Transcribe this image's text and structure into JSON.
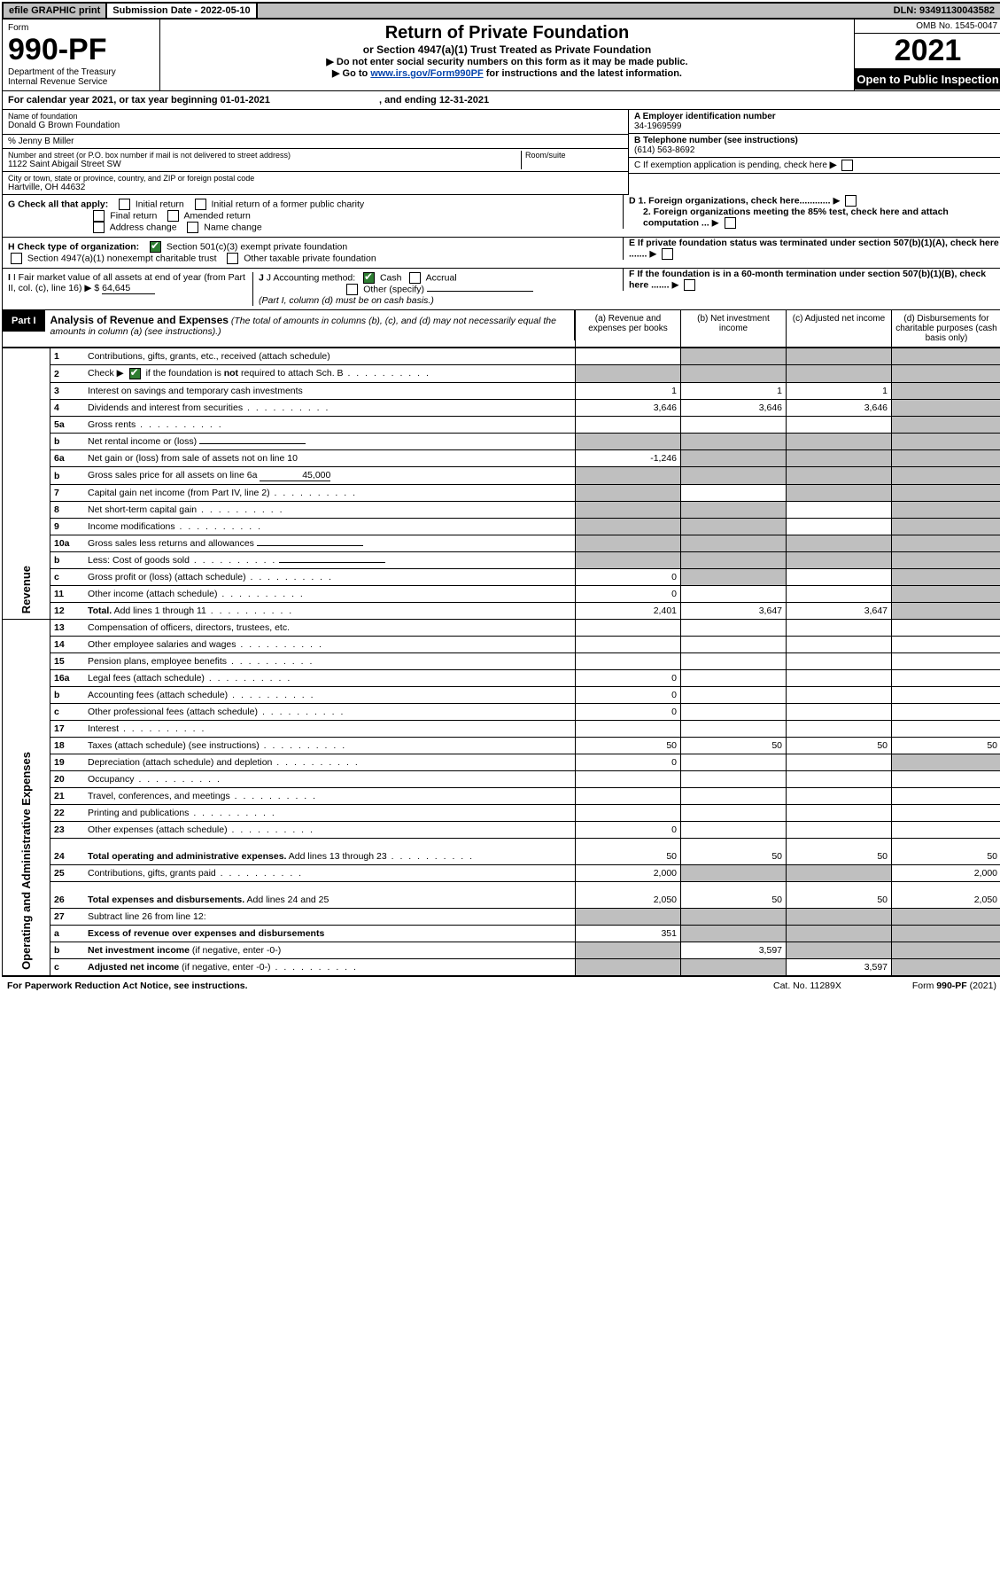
{
  "top": {
    "efile": "efile GRAPHIC print",
    "subdate_label": "Submission Date - ",
    "subdate": "2022-05-10",
    "dln_label": "DLN: ",
    "dln": "93491130043582"
  },
  "hdr": {
    "form_label": "Form",
    "form_no": "990-PF",
    "dept1": "Department of the Treasury",
    "dept2": "Internal Revenue Service",
    "title": "Return of Private Foundation",
    "subtitle": "or Section 4947(a)(1) Trust Treated as Private Foundation",
    "instr1": "▶ Do not enter social security numbers on this form as it may be made public.",
    "instr2a": "▶ Go to ",
    "instr2link": "www.irs.gov/Form990PF",
    "instr2b": " for instructions and the latest information.",
    "omb": "OMB No. 1545-0047",
    "year": "2021",
    "open": "Open to Public Inspection"
  },
  "cal": {
    "line": "For calendar year 2021, or tax year beginning 01-01-2021",
    "ending": ", and ending 12-31-2021"
  },
  "id": {
    "name_lbl": "Name of foundation",
    "name": "Donald G Brown Foundation",
    "co": "% Jenny B Miller",
    "addr_lbl": "Number and street (or P.O. box number if mail is not delivered to street address)",
    "addr": "1122 Saint Abigail Street SW",
    "room_lbl": "Room/suite",
    "city_lbl": "City or town, state or province, country, and ZIP or foreign postal code",
    "city": "Hartville, OH  44632",
    "a_lbl": "A Employer identification number",
    "a_val": "34-1969599",
    "b_lbl": "B Telephone number (see instructions)",
    "b_val": "(614) 563-8692",
    "c_lbl": "C If exemption application is pending, check here",
    "d1": "D 1. Foreign organizations, check here............",
    "d2": "2. Foreign organizations meeting the 85% test, check here and attach computation ...",
    "e": "E  If private foundation status was terminated under section 507(b)(1)(A), check here .......",
    "f": "F  If the foundation is in a 60-month termination under section 507(b)(1)(B), check here .......",
    "g_lbl": "G Check all that apply:",
    "g_opts": [
      "Initial return",
      "Initial return of a former public charity",
      "Final return",
      "Amended return",
      "Address change",
      "Name change"
    ],
    "h_lbl": "H Check type of organization:",
    "h_opts": [
      "Section 501(c)(3) exempt private foundation",
      "Section 4947(a)(1) nonexempt charitable trust",
      "Other taxable private foundation"
    ],
    "i_lbl": "I Fair market value of all assets at end of year (from Part II, col. (c), line 16) ▶ $",
    "i_val": "64,645",
    "j_lbl": "J Accounting method:",
    "j_opts": [
      "Cash",
      "Accrual",
      "Other (specify)"
    ],
    "j_note": "(Part I, column (d) must be on cash basis.)"
  },
  "part1": {
    "tab": "Part I",
    "title": "Analysis of Revenue and Expenses",
    "note": "(The total of amounts in columns (b), (c), and (d) may not necessarily equal the amounts in column (a) (see instructions).)",
    "cols": {
      "a": "(a)  Revenue and expenses per books",
      "b": "(b)  Net investment income",
      "c": "(c)  Adjusted net income",
      "d": "(d)  Disbursements for charitable purposes (cash basis only)"
    },
    "side_rev": "Revenue",
    "side_exp": "Operating and Administrative Expenses"
  },
  "rows": [
    {
      "n": "1",
      "desc": "Contributions, gifts, grants, etc., received (attach schedule)",
      "a": "",
      "b": "shade",
      "c": "shade",
      "d": "shade"
    },
    {
      "n": "2",
      "desc": "Check ▶ ☑ if the foundation is <b>not</b> required to attach Sch. B",
      "dots": true,
      "a": "shade",
      "b": "shade",
      "c": "shade",
      "d": "shade",
      "chk": true
    },
    {
      "n": "3",
      "desc": "Interest on savings and temporary cash investments",
      "a": "1",
      "b": "1",
      "c": "1",
      "d": "shade"
    },
    {
      "n": "4",
      "desc": "Dividends and interest from securities",
      "dots": true,
      "a": "3,646",
      "b": "3,646",
      "c": "3,646",
      "d": "shade"
    },
    {
      "n": "5a",
      "desc": "Gross rents",
      "dots": true,
      "a": "",
      "b": "",
      "c": "",
      "d": "shade"
    },
    {
      "n": "b",
      "desc": "Net rental income or (loss)",
      "inset": true,
      "under": true,
      "a": "shade",
      "b": "shade",
      "c": "shade",
      "d": "shade"
    },
    {
      "n": "6a",
      "desc": "Net gain or (loss) from sale of assets not on line 10",
      "a": "-1,246",
      "b": "shade",
      "c": "shade",
      "d": "shade"
    },
    {
      "n": "b",
      "desc": "Gross sales price for all assets on line 6a",
      "inset": true,
      "underval": "45,000",
      "a": "shade",
      "b": "shade",
      "c": "shade",
      "d": "shade"
    },
    {
      "n": "7",
      "desc": "Capital gain net income (from Part IV, line 2)",
      "dots": true,
      "a": "shade",
      "b": "",
      "c": "shade",
      "d": "shade"
    },
    {
      "n": "8",
      "desc": "Net short-term capital gain",
      "dots": true,
      "a": "shade",
      "b": "shade",
      "c": "",
      "d": "shade"
    },
    {
      "n": "9",
      "desc": "Income modifications",
      "dots": true,
      "a": "shade",
      "b": "shade",
      "c": "",
      "d": "shade"
    },
    {
      "n": "10a",
      "desc": "Gross sales less returns and allowances",
      "inset": true,
      "under": true,
      "a": "shade",
      "b": "shade",
      "c": "shade",
      "d": "shade"
    },
    {
      "n": "b",
      "desc": "Less: Cost of goods sold",
      "dots": true,
      "inset": true,
      "under": true,
      "a": "shade",
      "b": "shade",
      "c": "shade",
      "d": "shade"
    },
    {
      "n": "c",
      "desc": "Gross profit or (loss) (attach schedule)",
      "dots": true,
      "a": "0",
      "b": "shade",
      "c": "",
      "d": "shade"
    },
    {
      "n": "11",
      "desc": "Other income (attach schedule)",
      "dots": true,
      "a": "0",
      "b": "",
      "c": "",
      "d": "shade"
    },
    {
      "n": "12",
      "desc": "<b>Total.</b> Add lines 1 through 11",
      "dots": true,
      "a": "2,401",
      "b": "3,647",
      "c": "3,647",
      "d": "shade"
    }
  ],
  "exp_rows": [
    {
      "n": "13",
      "desc": "Compensation of officers, directors, trustees, etc.",
      "a": "",
      "b": "",
      "c": "",
      "d": ""
    },
    {
      "n": "14",
      "desc": "Other employee salaries and wages",
      "dots": true,
      "a": "",
      "b": "",
      "c": "",
      "d": ""
    },
    {
      "n": "15",
      "desc": "Pension plans, employee benefits",
      "dots": true,
      "a": "",
      "b": "",
      "c": "",
      "d": ""
    },
    {
      "n": "16a",
      "desc": "Legal fees (attach schedule)",
      "dots": true,
      "a": "0",
      "b": "",
      "c": "",
      "d": ""
    },
    {
      "n": "b",
      "desc": "Accounting fees (attach schedule)",
      "dots": true,
      "a": "0",
      "b": "",
      "c": "",
      "d": ""
    },
    {
      "n": "c",
      "desc": "Other professional fees (attach schedule)",
      "dots": true,
      "a": "0",
      "b": "",
      "c": "",
      "d": ""
    },
    {
      "n": "17",
      "desc": "Interest",
      "dots": true,
      "a": "",
      "b": "",
      "c": "",
      "d": ""
    },
    {
      "n": "18",
      "desc": "Taxes (attach schedule) (see instructions)",
      "dots": true,
      "a": "50",
      "b": "50",
      "c": "50",
      "d": "50"
    },
    {
      "n": "19",
      "desc": "Depreciation (attach schedule) and depletion",
      "dots": true,
      "a": "0",
      "b": "",
      "c": "",
      "d": "shade"
    },
    {
      "n": "20",
      "desc": "Occupancy",
      "dots": true,
      "a": "",
      "b": "",
      "c": "",
      "d": ""
    },
    {
      "n": "21",
      "desc": "Travel, conferences, and meetings",
      "dots": true,
      "a": "",
      "b": "",
      "c": "",
      "d": ""
    },
    {
      "n": "22",
      "desc": "Printing and publications",
      "dots": true,
      "a": "",
      "b": "",
      "c": "",
      "d": ""
    },
    {
      "n": "23",
      "desc": "Other expenses (attach schedule)",
      "dots": true,
      "a": "0",
      "b": "",
      "c": "",
      "d": ""
    },
    {
      "n": "24",
      "desc": "<b>Total operating and administrative expenses.</b> Add lines 13 through 23",
      "dots": true,
      "a": "50",
      "b": "50",
      "c": "50",
      "d": "50",
      "tall": true
    },
    {
      "n": "25",
      "desc": "Contributions, gifts, grants paid",
      "dots": true,
      "a": "2,000",
      "b": "shade",
      "c": "shade",
      "d": "2,000"
    },
    {
      "n": "26",
      "desc": "<b>Total expenses and disbursements.</b> Add lines 24 and 25",
      "a": "2,050",
      "b": "50",
      "c": "50",
      "d": "2,050",
      "tall": true
    },
    {
      "n": "27",
      "desc": "Subtract line 26 from line 12:",
      "a": "shade",
      "b": "shade",
      "c": "shade",
      "d": "shade"
    },
    {
      "n": "a",
      "desc": "<b>Excess of revenue over expenses and disbursements</b>",
      "a": "351",
      "b": "shade",
      "c": "shade",
      "d": "shade"
    },
    {
      "n": "b",
      "desc": "<b>Net investment income</b> (if negative, enter -0-)",
      "a": "shade",
      "b": "3,597",
      "c": "shade",
      "d": "shade"
    },
    {
      "n": "c",
      "desc": "<b>Adjusted net income</b> (if negative, enter -0-)",
      "dots": true,
      "a": "shade",
      "b": "shade",
      "c": "3,597",
      "d": "shade"
    }
  ],
  "footer": {
    "left": "For Paperwork Reduction Act Notice, see instructions.",
    "mid": "Cat. No. 11289X",
    "right": "Form 990-PF (2021)"
  }
}
